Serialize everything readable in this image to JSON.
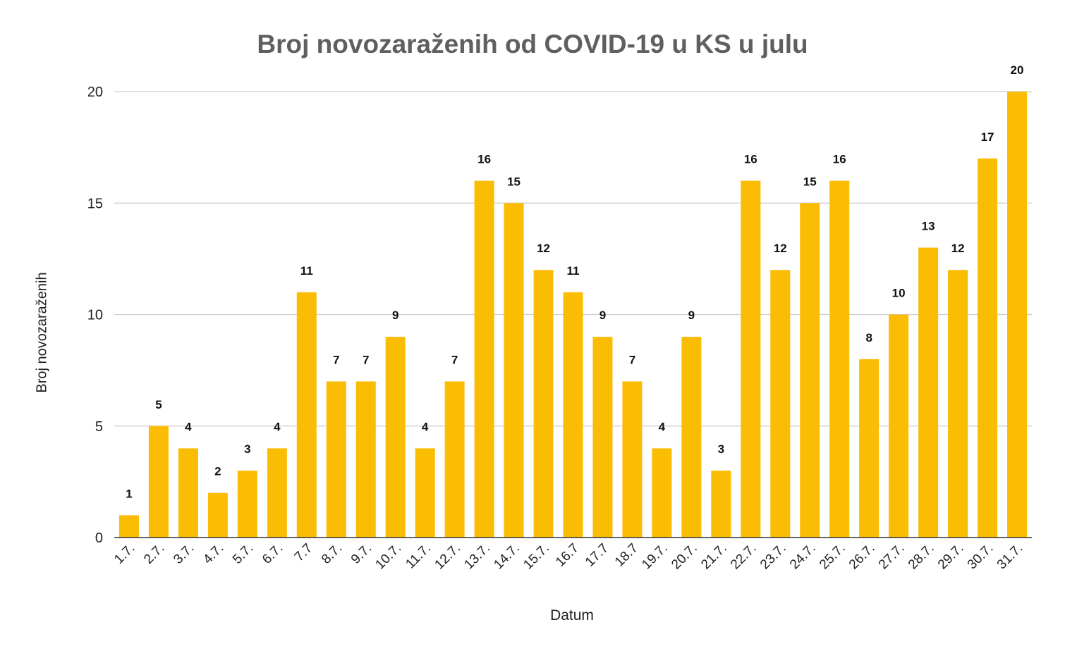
{
  "chart_data": {
    "type": "bar",
    "title": "Broj novozaraženih od COVID-19 u KS u julu",
    "xlabel": "Datum",
    "ylabel": "Broj novozaraženih",
    "categories": [
      "1.7.",
      "2.7.",
      "3.7.",
      "4.7.",
      "5.7.",
      "6.7.",
      "7.7",
      "8.7.",
      "9.7.",
      "10.7.",
      "11.7.",
      "12.7.",
      "13.7.",
      "14.7.",
      "15.7.",
      "16.7",
      "17.7",
      "18.7",
      "19.7.",
      "20.7.",
      "21.7.",
      "22.7.",
      "23.7.",
      "24.7.",
      "25.7.",
      "26.7.",
      "27.7.",
      "28.7.",
      "29.7.",
      "30.7.",
      "31.7."
    ],
    "values": [
      1,
      5,
      4,
      2,
      3,
      4,
      11,
      7,
      7,
      9,
      4,
      7,
      16,
      15,
      12,
      11,
      9,
      7,
      4,
      9,
      3,
      16,
      12,
      15,
      16,
      8,
      10,
      13,
      12,
      17,
      20
    ],
    "ylim": [
      0,
      20
    ],
    "yticks": [
      0,
      5,
      10,
      15,
      20
    ],
    "grid": true,
    "legend": "none",
    "data_labels": true,
    "bar_color": "#fbbc04",
    "grid_color": "#cccccc",
    "axis_color": "#333333"
  }
}
